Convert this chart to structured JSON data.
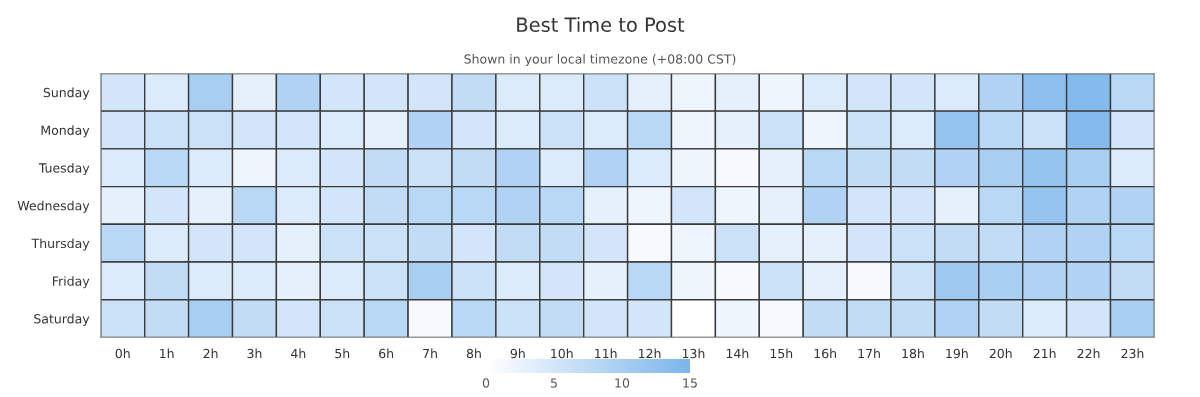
{
  "chart_data": {
    "type": "heatmap",
    "title": "Best Time to Post",
    "subtitle": "Shown in your local timezone (+08:00 CST)",
    "categories": [
      "0h",
      "1h",
      "2h",
      "3h",
      "4h",
      "5h",
      "6h",
      "7h",
      "8h",
      "9h",
      "10h",
      "11h",
      "12h",
      "13h",
      "14h",
      "15h",
      "16h",
      "17h",
      "18h",
      "19h",
      "20h",
      "21h",
      "22h",
      "23h"
    ],
    "y_categories": [
      "Sunday",
      "Monday",
      "Tuesday",
      "Wednesday",
      "Thursday",
      "Friday",
      "Saturday"
    ],
    "cells": [
      [
        5,
        4,
        10,
        3,
        9,
        5,
        5,
        5,
        7,
        4,
        4,
        6,
        3,
        2,
        3,
        2,
        4,
        5,
        5,
        4,
        9,
        13,
        14,
        8
      ],
      [
        5,
        6,
        6,
        5,
        5,
        4,
        3,
        9,
        5,
        4,
        6,
        4,
        8,
        2,
        3,
        6,
        2,
        6,
        4,
        12,
        8,
        6,
        14,
        5
      ],
      [
        4,
        8,
        4,
        2,
        4,
        5,
        7,
        6,
        7,
        9,
        4,
        9,
        4,
        2,
        1,
        3,
        8,
        7,
        7,
        9,
        10,
        12,
        10,
        4
      ],
      [
        3,
        5,
        3,
        8,
        4,
        5,
        7,
        8,
        8,
        9,
        8,
        3,
        2,
        5,
        2,
        3,
        9,
        5,
        5,
        3,
        8,
        12,
        9,
        9
      ],
      [
        8,
        4,
        5,
        5,
        3,
        6,
        6,
        7,
        5,
        7,
        7,
        5,
        1,
        2,
        6,
        3,
        3,
        5,
        6,
        7,
        7,
        9,
        9,
        8
      ],
      [
        4,
        7,
        4,
        4,
        3,
        4,
        6,
        10,
        6,
        4,
        5,
        3,
        8,
        2,
        1,
        6,
        3,
        1,
        6,
        11,
        10,
        9,
        9,
        7
      ],
      [
        6,
        7,
        10,
        7,
        5,
        6,
        8,
        1,
        8,
        6,
        7,
        5,
        5,
        0,
        2,
        1,
        7,
        7,
        7,
        9,
        7,
        4,
        5,
        10
      ]
    ],
    "colors": [
      "#ffffff",
      "#7cb5ec"
    ],
    "clim": [
      0,
      15
    ],
    "cticks": [
      0,
      5,
      10,
      15
    ]
  }
}
